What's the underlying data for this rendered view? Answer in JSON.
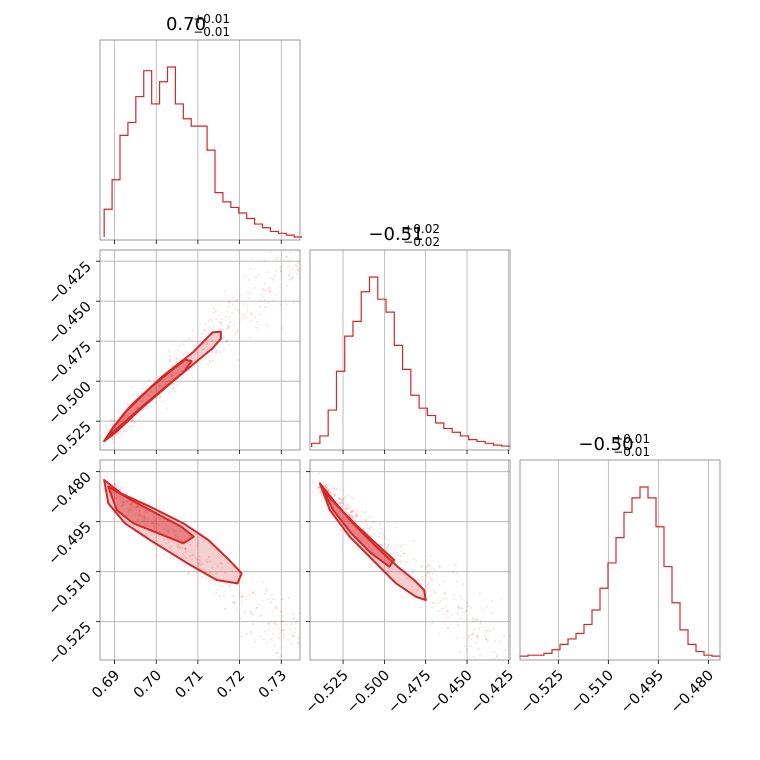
{
  "chart_data": [
    {
      "type": "histogram",
      "panel": "row1-col1",
      "title": "0.70",
      "title_sup": "+0.01",
      "title_sub": "−0.01",
      "xticks": [
        0.69,
        0.7,
        0.71,
        0.72,
        0.73
      ],
      "xtick_labels": [],
      "xlim": [
        0.6865,
        0.7345
      ],
      "bins_x": [
        0.6875,
        0.6894,
        0.6913,
        0.6932,
        0.6951,
        0.697,
        0.6989,
        0.7008,
        0.7027,
        0.7046,
        0.7065,
        0.7084,
        0.7103,
        0.7122,
        0.7141,
        0.716,
        0.7179,
        0.7198,
        0.7217,
        0.7236,
        0.7255,
        0.7274,
        0.7293,
        0.7312,
        0.7331,
        0.735
      ],
      "values": [
        0.15,
        0.31,
        0.55,
        0.62,
        0.76,
        0.9,
        0.72,
        0.84,
        0.92,
        0.72,
        0.64,
        0.6,
        0.6,
        0.47,
        0.24,
        0.19,
        0.16,
        0.13,
        0.1,
        0.07,
        0.05,
        0.03,
        0.02,
        0.01,
        0.0
      ],
      "color": "#d62728"
    },
    {
      "type": "scatter",
      "panel": "row2-col1",
      "xlim": [
        0.6865,
        0.7345
      ],
      "ylim": [
        -0.543,
        -0.418
      ],
      "xticks": [
        0.69,
        0.7,
        0.71,
        0.72,
        0.73
      ],
      "xtick_labels": [],
      "yticks": [
        -0.425,
        -0.45,
        -0.475,
        -0.5,
        -0.525
      ],
      "ytick_labels": [
        "−0.425",
        "−0.450",
        "−0.475",
        "−0.500",
        "−0.525"
      ],
      "trend": {
        "x": [
          0.688,
          0.735
        ],
        "y": [
          -0.536,
          -0.42
        ]
      },
      "contour_outer": [
        [
          0.6875,
          -0.5375
        ],
        [
          0.6905,
          -0.5315
        ],
        [
          0.696,
          -0.518
        ],
        [
          0.704,
          -0.5
        ],
        [
          0.71,
          -0.487
        ],
        [
          0.7135,
          -0.4795
        ],
        [
          0.7155,
          -0.4735
        ],
        [
          0.7155,
          -0.469
        ],
        [
          0.7135,
          -0.4695
        ],
        [
          0.709,
          -0.4815
        ],
        [
          0.7015,
          -0.497
        ],
        [
          0.694,
          -0.515
        ],
        [
          0.6895,
          -0.5295
        ],
        [
          0.6875,
          -0.5375
        ]
      ],
      "contour_inner": [
        [
          0.6885,
          -0.5345
        ],
        [
          0.692,
          -0.5265
        ],
        [
          0.697,
          -0.515
        ],
        [
          0.7025,
          -0.503
        ],
        [
          0.7065,
          -0.4945
        ],
        [
          0.7085,
          -0.4875
        ],
        [
          0.707,
          -0.4865
        ],
        [
          0.7035,
          -0.4935
        ],
        [
          0.698,
          -0.5055
        ],
        [
          0.6925,
          -0.5195
        ],
        [
          0.6895,
          -0.5295
        ],
        [
          0.6885,
          -0.5345
        ]
      ],
      "color": "#d62728"
    },
    {
      "type": "histogram",
      "panel": "row2-col2",
      "title": "−0.51",
      "title_sup": "+0.02",
      "title_sub": "−0.02",
      "xticks": [
        -0.525,
        -0.5,
        -0.475,
        -0.45,
        -0.425
      ],
      "xtick_labels": [],
      "xlim": [
        -0.545,
        -0.424
      ],
      "bins_x": [
        -0.544,
        -0.539,
        -0.534,
        -0.529,
        -0.524,
        -0.519,
        -0.514,
        -0.509,
        -0.504,
        -0.499,
        -0.494,
        -0.489,
        -0.484,
        -0.479,
        -0.474,
        -0.469,
        -0.464,
        -0.459,
        -0.454,
        -0.449,
        -0.444,
        -0.439,
        -0.434,
        -0.429,
        -0.424
      ],
      "values": [
        0.02,
        0.06,
        0.2,
        0.41,
        0.6,
        0.68,
        0.84,
        0.92,
        0.8,
        0.73,
        0.55,
        0.42,
        0.28,
        0.21,
        0.17,
        0.13,
        0.1,
        0.08,
        0.06,
        0.04,
        0.03,
        0.02,
        0.01,
        0.005
      ],
      "color": "#d62728"
    },
    {
      "type": "scatter",
      "panel": "row3-col1",
      "xlim": [
        0.6865,
        0.7345
      ],
      "ylim": [
        -0.5365,
        -0.4765
      ],
      "xticks": [
        0.69,
        0.7,
        0.71,
        0.72,
        0.73
      ],
      "xtick_labels": [
        "0.69",
        "0.70",
        "0.71",
        "0.72",
        "0.73"
      ],
      "yticks": [
        -0.48,
        -0.495,
        -0.51,
        -0.525
      ],
      "ytick_labels": [
        "−0.480",
        "−0.495",
        "−0.510",
        "−0.525"
      ],
      "trend": {
        "x": [
          0.688,
          0.735
        ],
        "y": [
          -0.4835,
          -0.5325
        ]
      },
      "contour_outer": [
        [
          0.6875,
          -0.4825
        ],
        [
          0.6915,
          -0.4865
        ],
        [
          0.6985,
          -0.4905
        ],
        [
          0.7065,
          -0.4955
        ],
        [
          0.7125,
          -0.5005
        ],
        [
          0.7175,
          -0.5065
        ],
        [
          0.7205,
          -0.5105
        ],
        [
          0.7195,
          -0.5135
        ],
        [
          0.7145,
          -0.5125
        ],
        [
          0.7075,
          -0.5075
        ],
        [
          0.6985,
          -0.5005
        ],
        [
          0.6925,
          -0.4955
        ],
        [
          0.6885,
          -0.4895
        ],
        [
          0.6875,
          -0.4825
        ]
      ],
      "contour_inner": [
        [
          0.6885,
          -0.4845
        ],
        [
          0.694,
          -0.4885
        ],
        [
          0.7,
          -0.4925
        ],
        [
          0.706,
          -0.4965
        ],
        [
          0.709,
          -0.4995
        ],
        [
          0.7065,
          -0.5015
        ],
        [
          0.7005,
          -0.4985
        ],
        [
          0.6945,
          -0.4955
        ],
        [
          0.6905,
          -0.4915
        ],
        [
          0.6885,
          -0.4845
        ]
      ],
      "color": "#d62728"
    },
    {
      "type": "scatter",
      "panel": "row3-col2",
      "xlim": [
        -0.545,
        -0.424
      ],
      "ylim": [
        -0.5365,
        -0.4765
      ],
      "xticks": [
        -0.525,
        -0.5,
        -0.475,
        -0.45,
        -0.425
      ],
      "xtick_labels": [
        "−0.525",
        "−0.500",
        "−0.475",
        "−0.450",
        "−0.425"
      ],
      "yticks": [
        -0.48,
        -0.495,
        -0.51,
        -0.525
      ],
      "ytick_labels": [],
      "trend": {
        "x": [
          -0.54,
          -0.435
        ],
        "y": [
          -0.4835,
          -0.532
        ]
      },
      "contour_outer": [
        [
          -0.539,
          -0.4835
        ],
        [
          -0.531,
          -0.4885
        ],
        [
          -0.519,
          -0.4955
        ],
        [
          -0.505,
          -0.5025
        ],
        [
          -0.492,
          -0.5085
        ],
        [
          -0.482,
          -0.5125
        ],
        [
          -0.476,
          -0.5155
        ],
        [
          -0.475,
          -0.5185
        ],
        [
          -0.481,
          -0.5175
        ],
        [
          -0.493,
          -0.5135
        ],
        [
          -0.507,
          -0.5065
        ],
        [
          -0.521,
          -0.4995
        ],
        [
          -0.533,
          -0.4915
        ],
        [
          -0.539,
          -0.4835
        ]
      ],
      "contour_inner": [
        [
          -0.537,
          -0.4855
        ],
        [
          -0.528,
          -0.4905
        ],
        [
          -0.516,
          -0.4965
        ],
        [
          -0.503,
          -0.5025
        ],
        [
          -0.494,
          -0.5065
        ],
        [
          -0.497,
          -0.5085
        ],
        [
          -0.508,
          -0.5045
        ],
        [
          -0.52,
          -0.4985
        ],
        [
          -0.531,
          -0.4915
        ],
        [
          -0.537,
          -0.4855
        ]
      ],
      "color": "#d62728"
    },
    {
      "type": "histogram",
      "panel": "row3-col3",
      "title": "−0.50",
      "title_sup": "+0.01",
      "title_sub": "−0.01",
      "xticks": [
        -0.525,
        -0.51,
        -0.495,
        -0.48
      ],
      "xtick_labels": [
        "−0.525",
        "−0.510",
        "−0.495",
        "−0.480"
      ],
      "xlim": [
        -0.5365,
        -0.4765
      ],
      "bins_x": [
        -0.5365,
        -0.5341,
        -0.5317,
        -0.5293,
        -0.5269,
        -0.5245,
        -0.5221,
        -0.5197,
        -0.5173,
        -0.5149,
        -0.5125,
        -0.5101,
        -0.5077,
        -0.5053,
        -0.5029,
        -0.5005,
        -0.4981,
        -0.4957,
        -0.4933,
        -0.4909,
        -0.4885,
        -0.4861,
        -0.4837,
        -0.4813,
        -0.4789,
        -0.4765
      ],
      "values": [
        0.005,
        0.01,
        0.01,
        0.02,
        0.04,
        0.07,
        0.1,
        0.13,
        0.18,
        0.26,
        0.38,
        0.52,
        0.66,
        0.8,
        0.88,
        0.94,
        0.88,
        0.72,
        0.5,
        0.3,
        0.15,
        0.07,
        0.03,
        0.01,
        0.005
      ],
      "color": "#d62728"
    }
  ]
}
